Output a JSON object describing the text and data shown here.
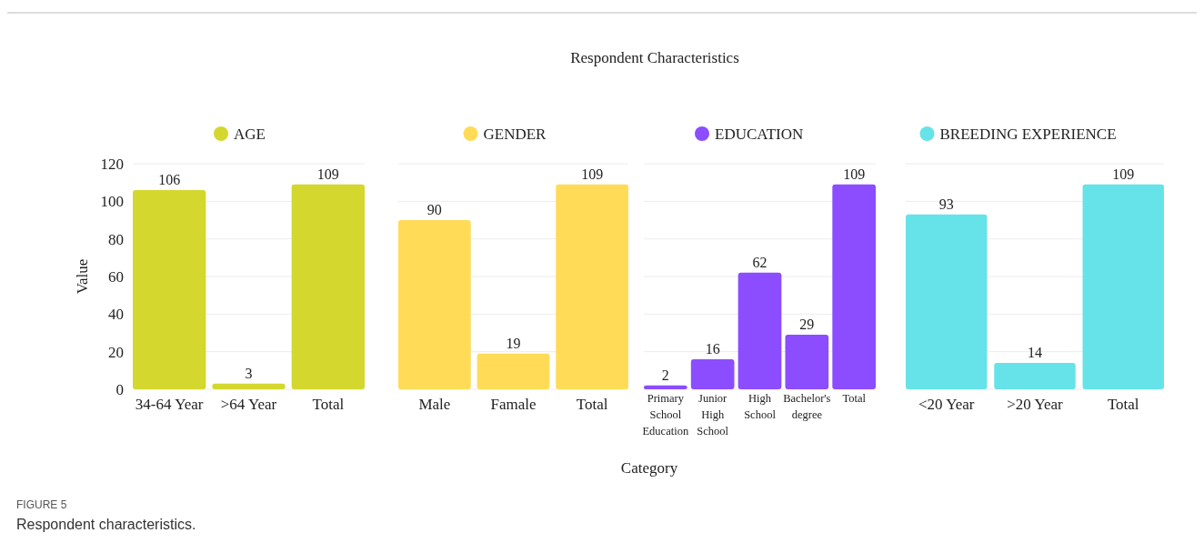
{
  "chart_data": [
    {
      "type": "bar",
      "ylabel": "Value",
      "categories": [
        "34-64 Year",
        ">64 Year",
        "Total"
      ],
      "series": [
        {
          "name": "AGE",
          "color": "#d4d72e",
          "values": [
            106,
            3,
            109
          ]
        }
      ],
      "ylim": [
        0,
        120
      ],
      "yticks": [
        0,
        20,
        40,
        60,
        80,
        100,
        120
      ],
      "grid": "y",
      "legend": "top",
      "data_labels": true,
      "annotations": [
        "FIGURE 5",
        "Respondent characteristics."
      ]
    },
    {
      "type": "bar",
      "categories": [
        "Male",
        "Famale",
        "Total"
      ],
      "series": [
        {
          "name": "GENDER",
          "color": "#ffdb58",
          "values": [
            90,
            19,
            109
          ]
        }
      ],
      "ylim": [
        0,
        120
      ],
      "yticks": [
        0,
        20,
        40,
        60,
        80,
        100,
        120
      ],
      "grid": "y",
      "legend": "top",
      "data_labels": true,
      "tick_labels": "x"
    },
    {
      "type": "bar",
      "title": "Respondent Characteristics",
      "xlabel": "Category",
      "categories": [
        "Primary School Education",
        "Junior High School",
        "High School",
        "Bachelor's degree",
        "Total"
      ],
      "series": [
        {
          "name": "EDUCATION",
          "color": "#8b4dff",
          "values": [
            2,
            16,
            62,
            29,
            109
          ]
        }
      ],
      "ylim": [
        0,
        120
      ],
      "yticks": [
        0,
        20,
        40,
        60,
        80,
        100,
        120
      ],
      "grid": "y",
      "legend": "top",
      "data_labels": true,
      "tick_labels": "x"
    },
    {
      "type": "bar",
      "categories": [
        "<20 Year",
        ">20 Year",
        "Total"
      ],
      "series": [
        {
          "name": "BREEDING EXPERIENCE",
          "color": "#66e3e8",
          "values": [
            93,
            14,
            109
          ]
        }
      ],
      "ylim": [
        0,
        120
      ],
      "yticks": [
        0,
        20,
        40,
        60,
        80,
        100,
        120
      ],
      "grid": "y",
      "legend": "top",
      "data_labels": true,
      "tick_labels": "x"
    }
  ]
}
